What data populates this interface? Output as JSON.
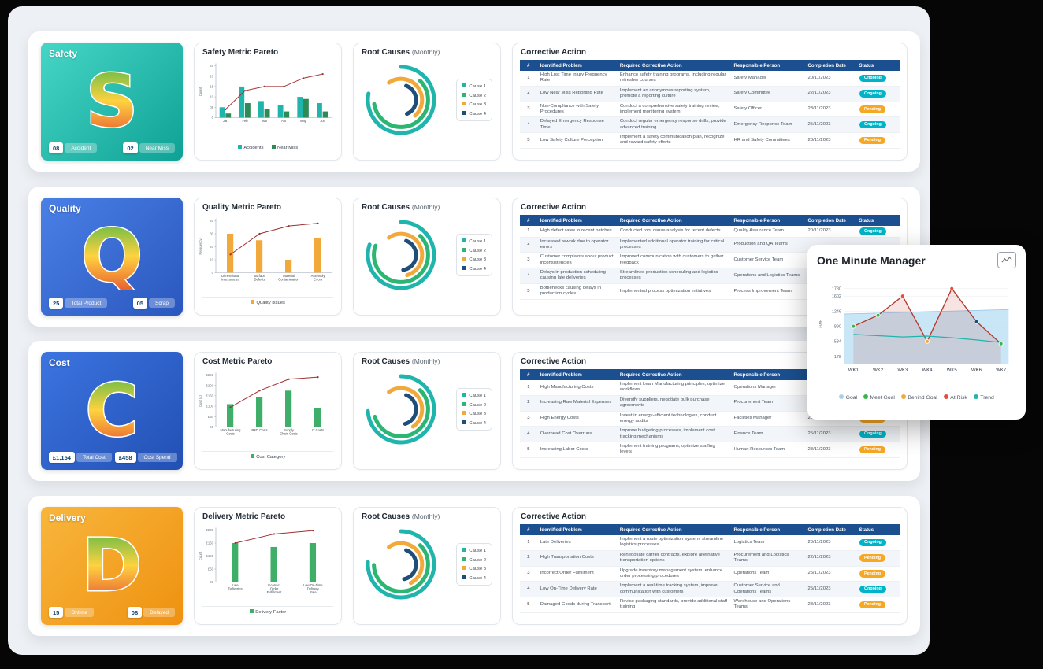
{
  "colors": {
    "table_header": "#1b4f8f",
    "status": {
      "Ongoing": "#00b3c6",
      "Pending": "#f7a823"
    },
    "board_bg": "#edf0f4"
  },
  "table_headers": [
    "#",
    "Identified Problem",
    "Required Corrective Action",
    "Responsible Person",
    "Completion Date",
    "Status"
  ],
  "rows": [
    {
      "id": "safety",
      "tile": {
        "title": "Safety",
        "letter": "S",
        "color_from": "#45d6c6",
        "color_to": "#0fa195",
        "badges": [
          {
            "value": "08",
            "label": "Accident"
          },
          {
            "value": "02",
            "label": "Near Miss"
          }
        ]
      },
      "pareto": {
        "title": "Safety Metric Pareto"
      },
      "root": {
        "title": "Root Causes",
        "suffix": "(Monthly)"
      },
      "table": {
        "title": "Corrective Action",
        "rows": [
          {
            "num": "1",
            "problem": "High Lost Time Injury Frequency Rate",
            "action": "Enhance safety training programs, including regular refresher courses",
            "person": "Safety Manager",
            "date": "20/11/2023",
            "status": "Ongoing"
          },
          {
            "num": "2",
            "problem": "Low Near Miss Reporting Rate",
            "action": "Implement an anonymous reporting system, promote a reporting culture",
            "person": "Safety Committee",
            "date": "22/11/2023",
            "status": "Ongoing"
          },
          {
            "num": "3",
            "problem": "Non-Compliance with Safety Procedures",
            "action": "Conduct a comprehensive safety training review, implement monitoring system",
            "person": "Safety Officer",
            "date": "23/11/2023",
            "status": "Pending"
          },
          {
            "num": "4",
            "problem": "Delayed Emergency Response Time",
            "action": "Conduct regular emergency response drills, provide advanced training",
            "person": "Emergency Response Team",
            "date": "25/11/2023",
            "status": "Ongoing"
          },
          {
            "num": "5",
            "problem": "Low Safety Culture Perception",
            "action": "Implement a safety communication plan, recognize and reward safety efforts",
            "person": "HR and Safety Committees",
            "date": "28/11/2023",
            "status": "Pending"
          }
        ]
      }
    },
    {
      "id": "quality",
      "tile": {
        "title": "Quality",
        "letter": "Q",
        "color_from": "#4a80e6",
        "color_to": "#2a57be",
        "badges": [
          {
            "value": "25",
            "label": "Total Product"
          },
          {
            "value": "05",
            "label": "Scrap"
          }
        ]
      },
      "pareto": {
        "title": "Quality Metric Pareto"
      },
      "root": {
        "title": "Root Causes",
        "suffix": "(Monthly)"
      },
      "table": {
        "title": "Corrective Action",
        "rows": [
          {
            "num": "1",
            "problem": "High defect rates in recent batches",
            "action": "Conducted root cause analysis for recent defects",
            "person": "Quality Assurance Team",
            "date": "20/11/2023",
            "status": "Ongoing"
          },
          {
            "num": "2",
            "problem": "Increased rework due to operator errors",
            "action": "Implemented additional operator training for critical processes",
            "person": "Production and QA Teams",
            "date": "",
            "status": ""
          },
          {
            "num": "3",
            "problem": "Customer complaints about product inconsistencies",
            "action": "Improved communication with customers to gather feedback",
            "person": "Customer Service Team",
            "date": "",
            "status": ""
          },
          {
            "num": "4",
            "problem": "Delays in production scheduling causing late deliveries",
            "action": "Streamlined production scheduling and logistics processes",
            "person": "Operations and Logistics Teams",
            "date": "",
            "status": ""
          },
          {
            "num": "5",
            "problem": "Bottlenecks causing delays in production cycles",
            "action": "Implemented process optimization initiatives",
            "person": "Process Improvement Team",
            "date": "",
            "status": ""
          }
        ]
      }
    },
    {
      "id": "cost",
      "tile": {
        "title": "Cost",
        "letter": "C",
        "color_from": "#3c74e0",
        "color_to": "#2250b4",
        "badges": [
          {
            "value": "£1,154",
            "label": "Total Cost"
          },
          {
            "value": "£458",
            "label": "Cost Spend"
          }
        ]
      },
      "pareto": {
        "title": "Cost Metric Pareto"
      },
      "root": {
        "title": "Root Causes",
        "suffix": "(Monthly)"
      },
      "table": {
        "title": "Corrective Action",
        "rows": [
          {
            "num": "1",
            "problem": "High Manufacturing Costs",
            "action": "Implement Lean Manufacturing principles, optimize workflows",
            "person": "Operations Manager",
            "date": "",
            "status": ""
          },
          {
            "num": "2",
            "problem": "Increasing Raw Material Expenses",
            "action": "Diversify suppliers, negotiate bulk purchase agreements",
            "person": "Procurement Team",
            "date": "",
            "status": ""
          },
          {
            "num": "3",
            "problem": "High Energy Costs",
            "action": "Invest in energy-efficient technologies, conduct energy audits",
            "person": "Facilities Manager",
            "date": "23/11/2023",
            "status": "Pending"
          },
          {
            "num": "4",
            "problem": "Overhead Cost Overruns",
            "action": "Improve budgeting processes, implement cost tracking mechanisms",
            "person": "Finance Team",
            "date": "25/11/2023",
            "status": "Ongoing"
          },
          {
            "num": "5",
            "problem": "Increasing Labor Costs",
            "action": "Implement training programs, optimize staffing levels",
            "person": "Human Resources Team",
            "date": "28/11/2023",
            "status": "Pending"
          }
        ]
      }
    },
    {
      "id": "delivery",
      "tile": {
        "title": "Delivery",
        "letter": "D",
        "color_from": "#f8b63c",
        "color_to": "#ef9110",
        "badges": [
          {
            "value": "15",
            "label": "Ontime"
          },
          {
            "value": "08",
            "label": "Delayed"
          }
        ]
      },
      "pareto": {
        "title": "Delivery Metric Pareto"
      },
      "root": {
        "title": "Root Causes",
        "suffix": "(Monthly)"
      },
      "table": {
        "title": "Corrective Action",
        "rows": [
          {
            "num": "1",
            "problem": "Late Deliveries",
            "action": "Implement a route optimization system, streamline logistics processes",
            "person": "Logistics Team",
            "date": "20/11/2023",
            "status": "Ongoing"
          },
          {
            "num": "2",
            "problem": "High Transportation Costs",
            "action": "Renegotiate carrier contracts, explore alternative transportation options",
            "person": "Procurement and Logistics Teams",
            "date": "22/11/2023",
            "status": "Pending"
          },
          {
            "num": "3",
            "problem": "Incorrect Order Fulfillment",
            "action": "Upgrade inventory management system, enhance order processing procedures",
            "person": "Operations Team",
            "date": "25/11/2023",
            "status": "Pending"
          },
          {
            "num": "4",
            "problem": "Low On-Time Delivery Rate",
            "action": "Implement a real-time tracking system, improve communication with customers",
            "person": "Customer Service and Operations Teams",
            "date": "25/11/2023",
            "status": "Ongoing"
          },
          {
            "num": "5",
            "problem": "Damaged Goods during Transport",
            "action": "Revise packaging standards, provide additional staff training",
            "person": "Warehouse and Operations Teams",
            "date": "28/11/2023",
            "status": "Pending"
          }
        ]
      }
    }
  ],
  "overlay": {
    "title": "One Minute Manager"
  },
  "chart_data": [
    {
      "id": "safety_pareto",
      "type": "bar",
      "title": "Safety Metric Pareto",
      "categories": [
        "Jan",
        "Feb",
        "Mar",
        "Apr",
        "May",
        "Jun"
      ],
      "series": [
        {
          "name": "Accidents",
          "color": "#1fb5ad",
          "values": [
            5,
            15,
            8,
            6,
            10,
            7
          ]
        },
        {
          "name": "Near Miss",
          "color": "#2e8b57",
          "values": [
            2,
            7,
            4,
            3,
            9,
            3
          ]
        }
      ],
      "line": {
        "name": "Cumulative",
        "color": "#9e2f2f",
        "values": [
          4,
          13,
          15,
          15,
          19,
          21
        ]
      },
      "ylim": [
        0,
        25
      ],
      "yticks": [
        "0",
        "05",
        "10",
        "15",
        "20",
        "25"
      ],
      "ylabel": "Count"
    },
    {
      "id": "quality_pareto",
      "type": "bar",
      "title": "Quality Metric Pareto",
      "categories": [
        "Dimensional Inaccuracies",
        "Surface Defects",
        "Material Contamination",
        "Assembly Errors"
      ],
      "series": [
        {
          "name": "Quality Issues",
          "color": "#f2a93b",
          "values": [
            30,
            25,
            10,
            27
          ]
        }
      ],
      "line": {
        "name": "Cumulative",
        "color": "#9e2f2f",
        "values": [
          14,
          30,
          36,
          38
        ]
      },
      "ylim": [
        0,
        40
      ],
      "yticks": [
        "0",
        "10",
        "20",
        "30",
        "40"
      ],
      "ylabel": "Frequency"
    },
    {
      "id": "cost_pareto",
      "type": "bar",
      "title": "Cost Metric Pareto",
      "categories": [
        "Manufacturing Costs",
        "R&D Costs",
        "Supply Chain Costs",
        "IT Costs"
      ],
      "series": [
        {
          "name": "Cost Category",
          "color": "#3fae68",
          "values": [
            110,
            145,
            175,
            90
          ]
        }
      ],
      "line": {
        "name": "Cumulative",
        "color": "#9e2f2f",
        "values": [
          95,
          175,
          230,
          240
        ]
      },
      "ylim": [
        0,
        250
      ],
      "yticks": [
        "£0",
        "£50",
        "£100",
        "£150",
        "£200",
        "£250"
      ],
      "ylabel": "Cost (£)"
    },
    {
      "id": "delivery_pareto",
      "type": "bar",
      "title": "Delivery Metric Pareto",
      "categories": [
        "Late Deliveries",
        "Incorrect Order Fulfillment",
        "Low On-Time Delivery Rate"
      ],
      "series": [
        {
          "name": "Delivery Factor",
          "color": "#3fae68",
          "values": [
            150,
            135,
            150
          ]
        }
      ],
      "line": {
        "name": "Cumulative",
        "color": "#9e2f2f",
        "values": [
          150,
          185,
          198
        ]
      },
      "ylim": [
        0,
        200
      ],
      "yticks": [
        "£0",
        "£50",
        "£100",
        "£150",
        "£200"
      ],
      "ylabel": "Count"
    },
    {
      "id": "safety_root",
      "type": "radial",
      "title": "Root Causes (Monthly)",
      "legend": [
        "Cause 1",
        "Cause 2",
        "Cause 3",
        "Cause 4"
      ],
      "colors": [
        "#1fb5ad",
        "#2bb673",
        "#f2a93b",
        "#1f4e79"
      ],
      "values": [
        78,
        60,
        48,
        38
      ]
    },
    {
      "id": "quality_root",
      "type": "radial",
      "title": "Root Causes (Monthly)",
      "legend": [
        "Cause 1",
        "Cause 2",
        "Cause 3",
        "Cause 4"
      ],
      "colors": [
        "#1fb5ad",
        "#2bb673",
        "#f2a93b",
        "#1f4e79"
      ],
      "values": [
        80,
        68,
        55,
        42
      ]
    },
    {
      "id": "cost_root",
      "type": "radial",
      "title": "Root Causes (Monthly)",
      "legend": [
        "Cause 1",
        "Cause 2",
        "Cause 3",
        "Cause 4"
      ],
      "colors": [
        "#1fb5ad",
        "#2bb673",
        "#f2a93b",
        "#1f4e79"
      ],
      "values": [
        74,
        58,
        50,
        40
      ]
    },
    {
      "id": "delivery_root",
      "type": "radial",
      "title": "Root Causes (Monthly)",
      "legend": [
        "Cause 1",
        "Cause 2",
        "Cause 3",
        "Cause 4"
      ],
      "colors": [
        "#1fb5ad",
        "#2bb673",
        "#f2a93b",
        "#1f4e79"
      ],
      "values": [
        76,
        62,
        52,
        41
      ]
    },
    {
      "id": "omm",
      "type": "line",
      "title": "One Minute Manager",
      "x": [
        "WK1",
        "WK2",
        "WK3",
        "WK4",
        "WK5",
        "WK6",
        "WK7"
      ],
      "ylabel": "kWh",
      "yticks": [
        "178",
        "534",
        "890",
        "1246",
        "1602",
        "1780"
      ],
      "ytick_values": [
        178,
        534,
        890,
        1246,
        1602,
        1780
      ],
      "ylim": [
        0,
        1900
      ],
      "goal": 1180,
      "goal_color": "#bfe2f4",
      "series": [
        {
          "name": "Actual",
          "color": "#b03a2e",
          "values": [
            890,
            1150,
            1602,
            534,
            1780,
            1000,
            480
          ],
          "marker_colors": [
            "#3bb54a",
            "#3bb54a",
            "#e74c3c",
            "#f2a93b",
            "#e74c3c",
            "#1f4e79",
            "#3bb54a"
          ]
        },
        {
          "name": "Trend",
          "color": "#1fb5ad",
          "values": [
            700,
            670,
            640,
            660,
            620,
            570,
            510
          ]
        }
      ],
      "legend": [
        {
          "label": "Goal",
          "color": "#a9cfe8"
        },
        {
          "label": "Meet Goal",
          "color": "#3bb54a"
        },
        {
          "label": "Behind Goal",
          "color": "#f2a93b"
        },
        {
          "label": "At Risk",
          "color": "#e74c3c"
        },
        {
          "label": "Trend",
          "color": "#1fb5ad"
        }
      ]
    }
  ]
}
